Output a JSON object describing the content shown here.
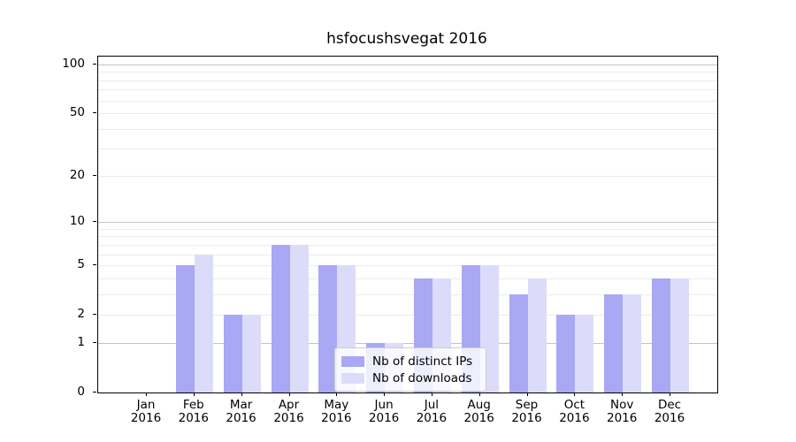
{
  "title": "hsfocushsvegat 2016",
  "chart_data": {
    "type": "bar",
    "title": "hsfocushsvegat 2016",
    "categories": [
      "Jan",
      "Feb",
      "Mar",
      "Apr",
      "May",
      "Jun",
      "Jul",
      "Aug",
      "Sep",
      "Oct",
      "Nov",
      "Dec"
    ],
    "category_sublabel": "2016",
    "series": [
      {
        "name": "Nb of distinct IPs",
        "color": "#a8a8f4",
        "values": [
          0,
          5,
          2,
          7,
          5,
          1,
          4,
          5,
          3,
          2,
          3,
          4
        ]
      },
      {
        "name": "Nb of downloads",
        "color": "#dcdcfa",
        "values": [
          0,
          6,
          2,
          7,
          5,
          1,
          4,
          5,
          4,
          2,
          3,
          4
        ]
      }
    ],
    "yscale": "log1p",
    "yticks": [
      0,
      1,
      2,
      5,
      10,
      20,
      50,
      100
    ],
    "major_grid_values": [
      1,
      10,
      100
    ],
    "minor_grid_values": [
      2,
      3,
      4,
      5,
      6,
      7,
      8,
      9,
      20,
      30,
      40,
      50,
      60,
      70,
      80,
      90
    ],
    "ylim": [
      0,
      112
    ],
    "grid": "horizontal",
    "legend_position": "lower center",
    "grid_major_color": "#c3c3c3",
    "grid_minor_color": "#ececec"
  }
}
